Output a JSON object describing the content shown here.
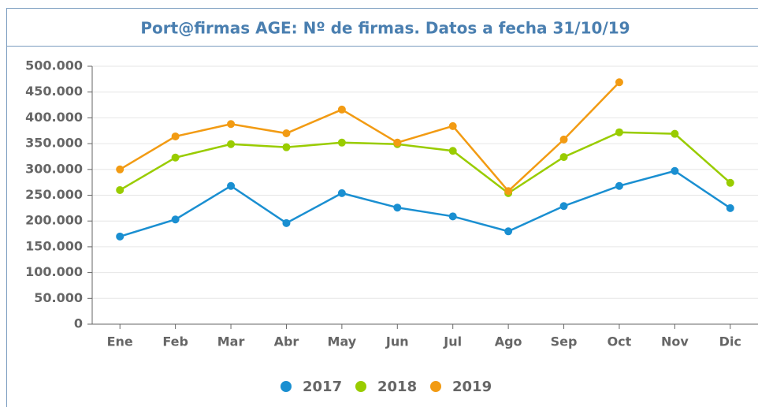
{
  "chart_data": {
    "type": "line",
    "title": "Port@firmas AGE: Nº de firmas. Datos a fecha 31/10/19",
    "categories": [
      "Ene",
      "Feb",
      "Mar",
      "Abr",
      "May",
      "Jun",
      "Jul",
      "Ago",
      "Sep",
      "Oct",
      "Nov",
      "Dic"
    ],
    "series": [
      {
        "name": "2017",
        "color": "#1a8fd1",
        "values": [
          170000,
          203000,
          268000,
          196000,
          254000,
          226000,
          209000,
          180000,
          229000,
          268000,
          297000,
          225000
        ]
      },
      {
        "name": "2018",
        "color": "#99cc00",
        "values": [
          260000,
          323000,
          349000,
          343000,
          352000,
          349000,
          336000,
          254000,
          324000,
          372000,
          369000,
          274000
        ]
      },
      {
        "name": "2019",
        "color": "#f29b13",
        "values": [
          300000,
          364000,
          388000,
          370000,
          416000,
          352000,
          384000,
          258000,
          358000,
          469000,
          null,
          null
        ]
      }
    ],
    "ylim": [
      0,
      500000
    ],
    "yticks": [
      0,
      {
        "value": 50000,
        "label": "50.000"
      },
      {
        "value": 100000,
        "label": "100.000"
      },
      {
        "value": 150000,
        "label": "150.000"
      },
      {
        "value": 200000,
        "label": "200.000"
      },
      {
        "value": 250000,
        "label": "250.000"
      },
      {
        "value": 300000,
        "label": "300.000"
      },
      {
        "value": 350000,
        "label": "350.000"
      },
      {
        "value": 400000,
        "label": "400.000"
      },
      {
        "value": 450000,
        "label": "450.000"
      },
      {
        "value": 500000,
        "label": "500.000"
      }
    ],
    "grid": true,
    "legend": "bottom"
  }
}
